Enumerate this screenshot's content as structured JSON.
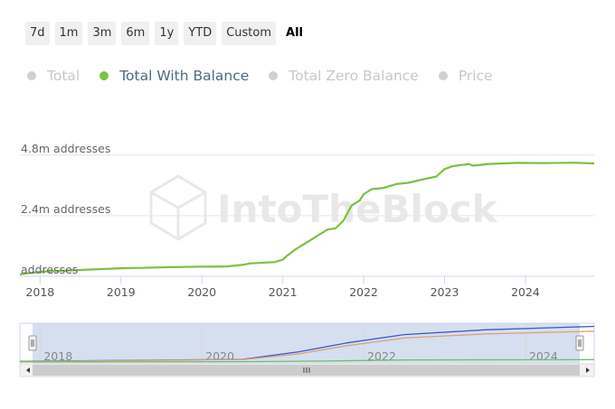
{
  "range_buttons": [
    "7d",
    "1m",
    "3m",
    "6m",
    "1y",
    "YTD",
    "Custom",
    "All"
  ],
  "active_range": "All",
  "legend": [
    {
      "label": "Total",
      "active": false
    },
    {
      "label": "Total With Balance",
      "active": true
    },
    {
      "label": "Total Zero Balance",
      "active": false
    },
    {
      "label": "Price",
      "active": false
    }
  ],
  "watermark": "IntoTheBlock",
  "colors": {
    "series": "#7ac142",
    "navigator_total": "#3a5bc7",
    "navigator_with_balance": "#d9a07a",
    "navigator_zero": "#6cc26c",
    "navigator_mask": "#c8d4ea"
  },
  "chart_data": {
    "type": "line",
    "ylim": [
      0,
      5400000
    ],
    "y_ticks": [
      {
        "value": 0,
        "label": "addresses"
      },
      {
        "value": 2400000,
        "label": "2.4m addresses"
      },
      {
        "value": 4800000,
        "label": "4.8m addresses"
      }
    ],
    "x_range": [
      2017.75,
      2024.85
    ],
    "x_tick_labels": [
      "2018",
      "2019",
      "2020",
      "2021",
      "2022",
      "2023",
      "2024"
    ],
    "series": [
      {
        "name": "Total With Balance",
        "points": [
          [
            2017.75,
            80000
          ],
          [
            2018.0,
            180000
          ],
          [
            2018.5,
            250000
          ],
          [
            2019.0,
            320000
          ],
          [
            2019.2,
            330000
          ],
          [
            2019.6,
            360000
          ],
          [
            2020.0,
            380000
          ],
          [
            2020.3,
            390000
          ],
          [
            2020.5,
            450000
          ],
          [
            2020.6,
            510000
          ],
          [
            2020.9,
            560000
          ],
          [
            2021.0,
            660000
          ],
          [
            2021.05,
            800000
          ],
          [
            2021.15,
            1050000
          ],
          [
            2021.3,
            1350000
          ],
          [
            2021.45,
            1650000
          ],
          [
            2021.55,
            1850000
          ],
          [
            2021.65,
            1900000
          ],
          [
            2021.75,
            2200000
          ],
          [
            2021.85,
            2800000
          ],
          [
            2021.95,
            3000000
          ],
          [
            2022.0,
            3250000
          ],
          [
            2022.1,
            3450000
          ],
          [
            2022.25,
            3500000
          ],
          [
            2022.4,
            3650000
          ],
          [
            2022.55,
            3700000
          ],
          [
            2022.75,
            3850000
          ],
          [
            2022.9,
            3950000
          ],
          [
            2023.0,
            4250000
          ],
          [
            2023.1,
            4360000
          ],
          [
            2023.3,
            4450000
          ],
          [
            2023.35,
            4380000
          ],
          [
            2023.55,
            4450000
          ],
          [
            2023.9,
            4490000
          ],
          [
            2024.2,
            4480000
          ],
          [
            2024.6,
            4500000
          ],
          [
            2024.85,
            4470000
          ]
        ]
      }
    ],
    "navigator": {
      "x_tick_labels": [
        "2018",
        "2020",
        "2022",
        "2024"
      ],
      "series": [
        {
          "key": "navigator_total",
          "points": [
            [
              2017.75,
              100000
            ],
            [
              2020.5,
              400000
            ],
            [
              2021.2,
              1500000
            ],
            [
              2021.8,
              2800000
            ],
            [
              2022.5,
              4000000
            ],
            [
              2023.5,
              4700000
            ],
            [
              2024.85,
              5200000
            ]
          ]
        },
        {
          "key": "navigator_with_balance",
          "points": [
            [
              2017.75,
              80000
            ],
            [
              2020.5,
              350000
            ],
            [
              2021.2,
              1200000
            ],
            [
              2021.8,
              2400000
            ],
            [
              2022.5,
              3500000
            ],
            [
              2023.5,
              4100000
            ],
            [
              2024.85,
              4500000
            ]
          ]
        },
        {
          "key": "navigator_zero",
          "points": [
            [
              2017.75,
              20000
            ],
            [
              2020.5,
              50000
            ],
            [
              2021.5,
              150000
            ],
            [
              2022.5,
              300000
            ],
            [
              2024.85,
              350000
            ]
          ]
        }
      ]
    }
  }
}
